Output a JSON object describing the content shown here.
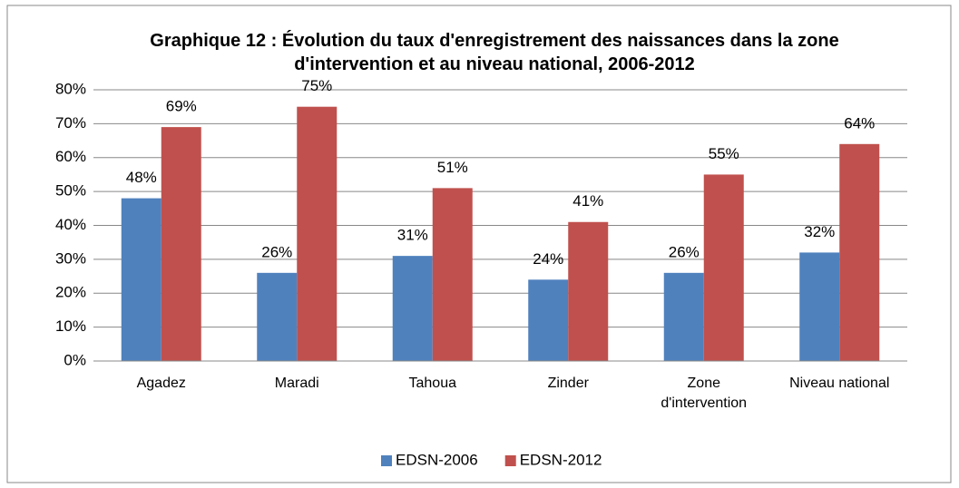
{
  "chart_data": {
    "type": "bar",
    "title": "Graphique 12 : Évolution du taux d'enregistrement des naissances dans la zone d'intervention et au niveau national, 2006-2012",
    "categories": [
      "Agadez",
      "Maradi",
      "Tahoua",
      "Zinder",
      "Zone d'intervention",
      "Niveau national"
    ],
    "series": [
      {
        "name": "EDSN-2006",
        "color": "#4f81bd",
        "values": [
          48,
          26,
          31,
          24,
          26,
          32
        ],
        "value_labels": [
          "48%",
          "26%",
          "31%",
          "24%",
          "26%",
          "32%"
        ]
      },
      {
        "name": "EDSN-2012",
        "color": "#c0504d",
        "values": [
          69,
          75,
          51,
          41,
          55,
          64
        ],
        "value_labels": [
          "69%",
          "75%",
          "51%",
          "41%",
          "55%",
          "64%"
        ]
      }
    ],
    "ylim": [
      0,
      80
    ],
    "yticks": [
      {
        "value": 0,
        "label": "0%"
      },
      {
        "value": 10,
        "label": "10%"
      },
      {
        "value": 20,
        "label": "20%"
      },
      {
        "value": 30,
        "label": "30%"
      },
      {
        "value": 40,
        "label": "40%"
      },
      {
        "value": 50,
        "label": "50%"
      },
      {
        "value": 60,
        "label": "60%"
      },
      {
        "value": 70,
        "label": "70%"
      },
      {
        "value": 80,
        "label": "80%"
      }
    ],
    "grid": true,
    "legend": "bottom"
  }
}
